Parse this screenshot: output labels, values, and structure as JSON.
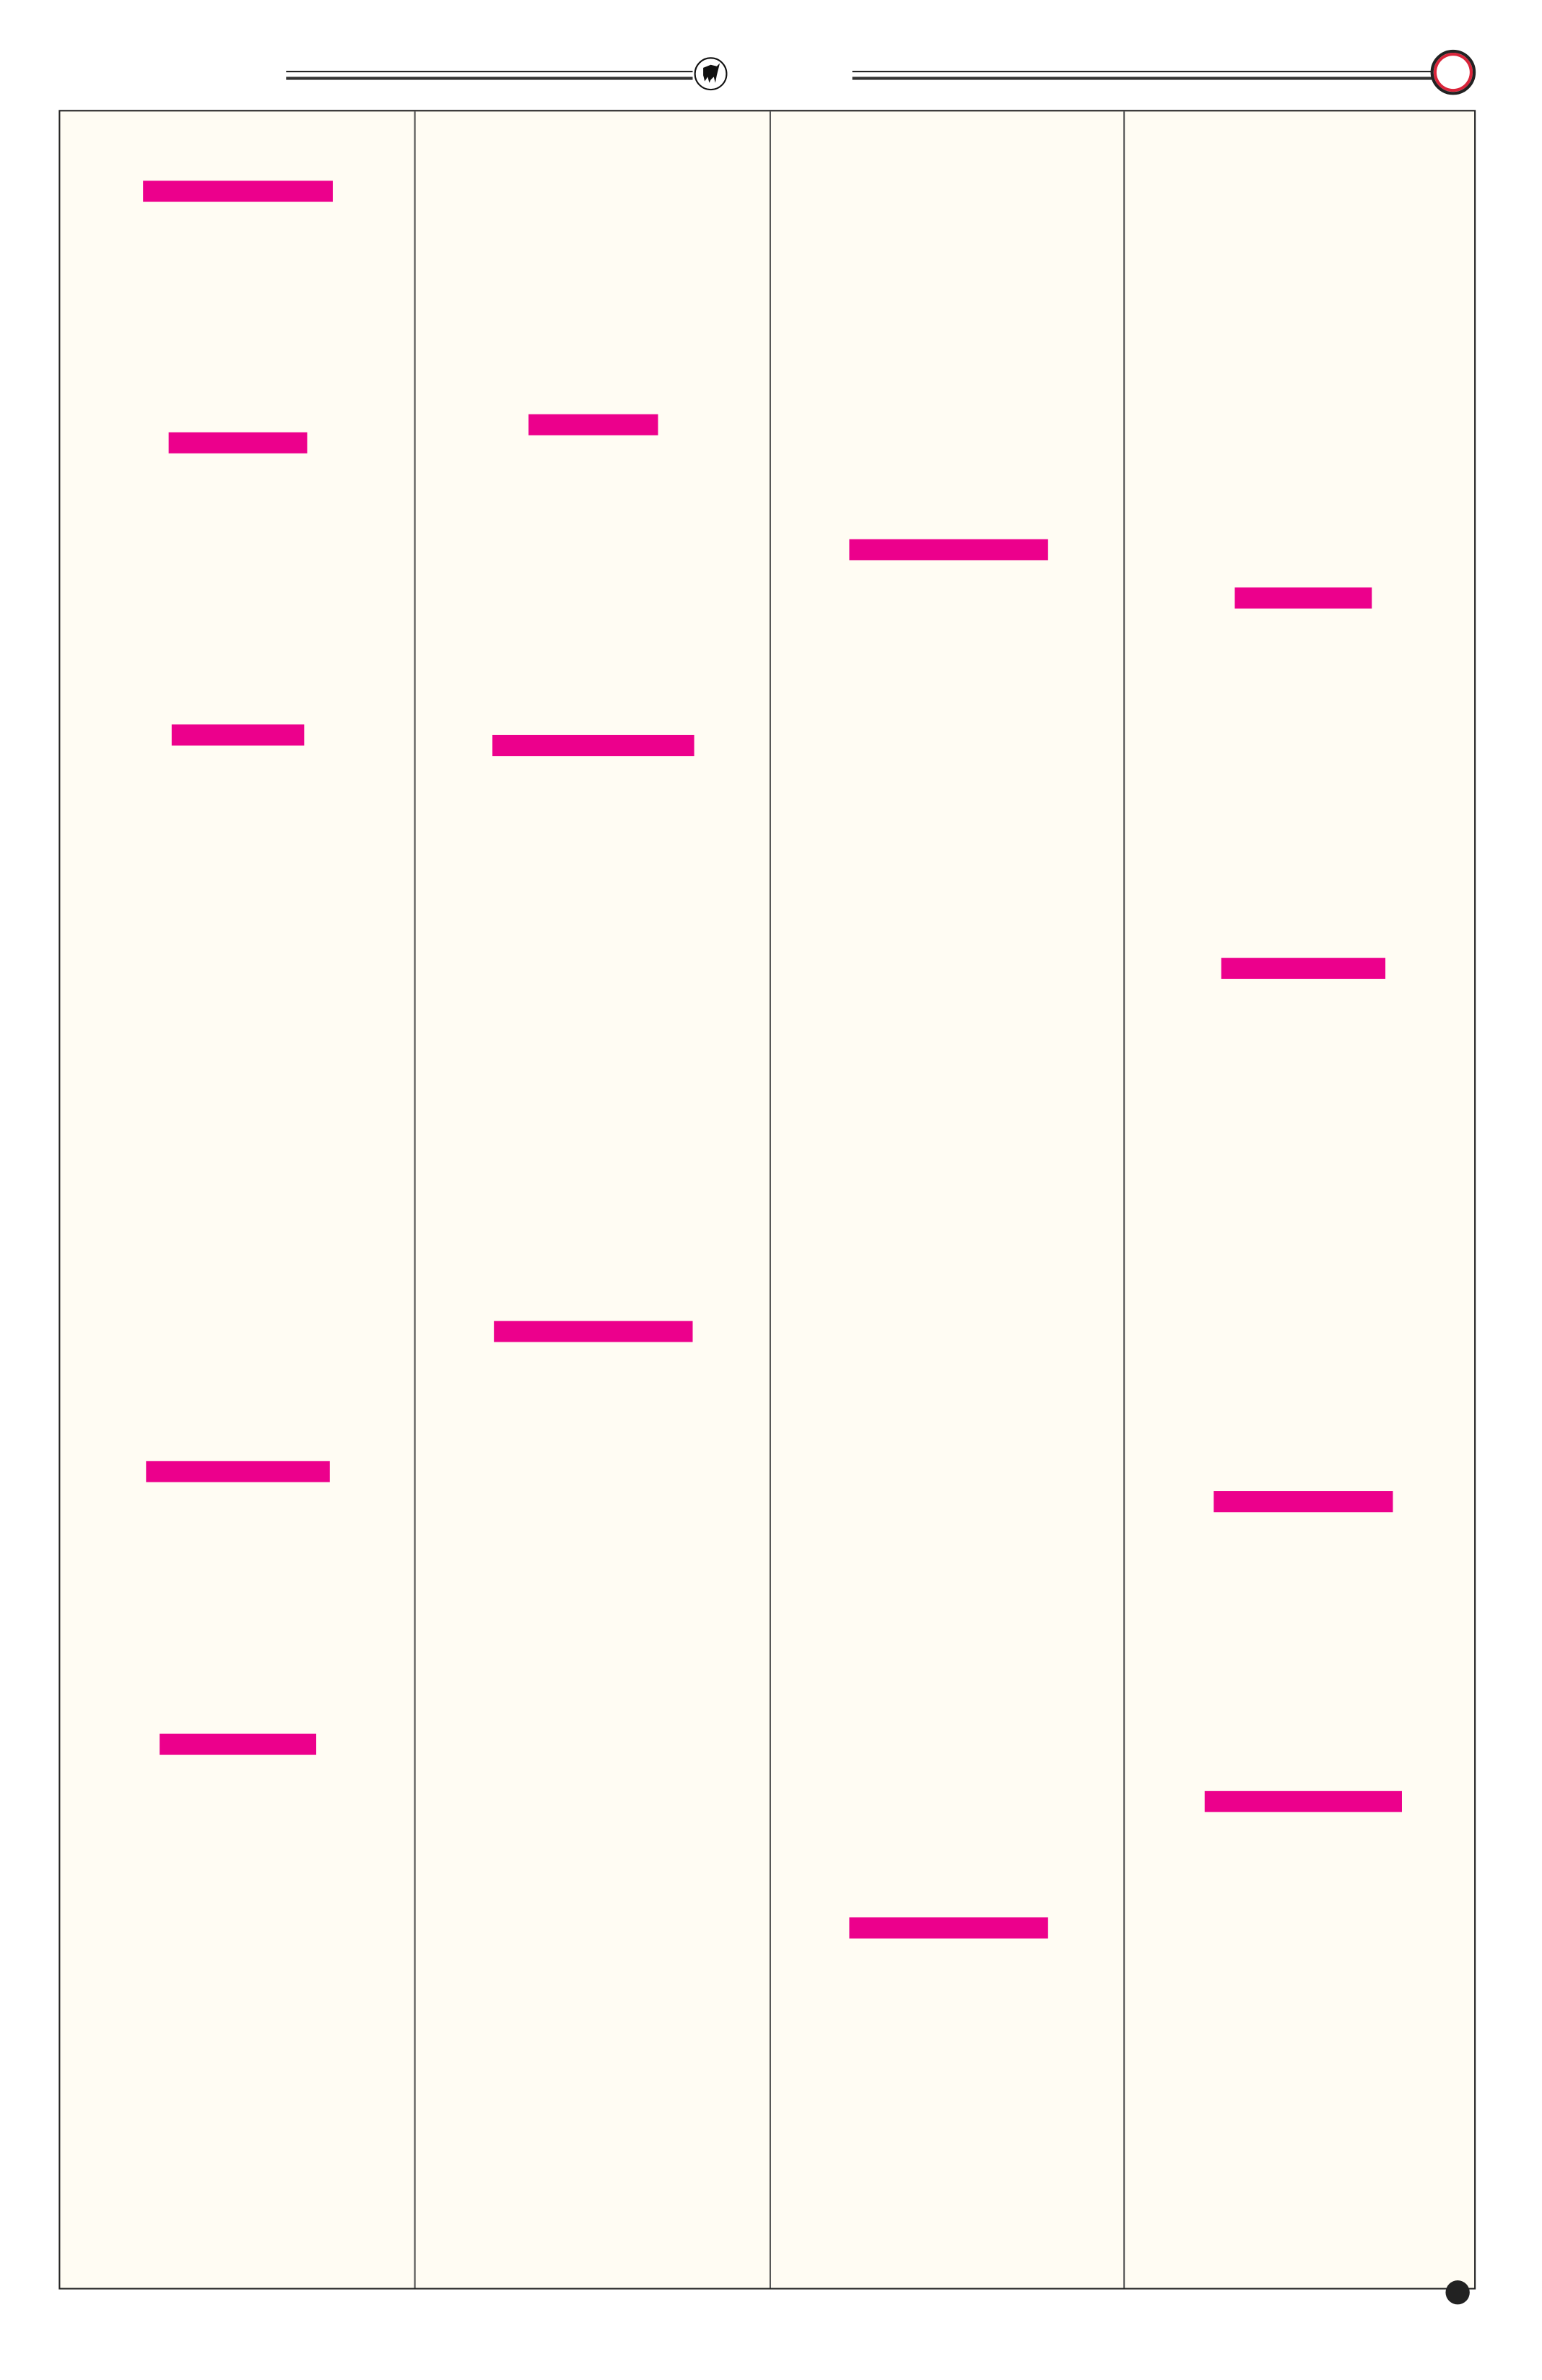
{
  "colors": {
    "heading_bar": "#ec008c",
    "page_background": "#fffcf3",
    "header_ring": "#d9243a"
  },
  "header": {
    "logo_icon": "bull-emblem-icon",
    "ring_icon": "red-ring-icon"
  },
  "footer": {
    "marker_icon": "page-dot-icon"
  },
  "columns": 4
}
